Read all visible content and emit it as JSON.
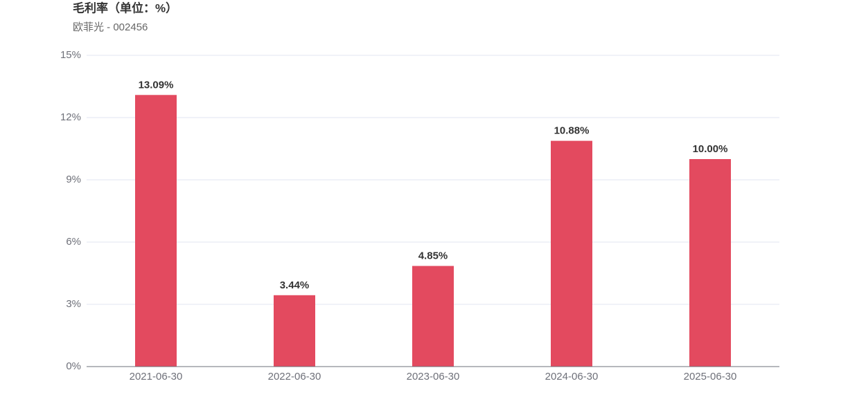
{
  "chart_data": {
    "type": "bar",
    "title": "毛利率（单位：%）",
    "subtitle": "欧菲光 - 002456",
    "categories": [
      "2021-06-30",
      "2022-06-30",
      "2023-06-30",
      "2024-06-30",
      "2025-06-30"
    ],
    "values": [
      13.09,
      3.44,
      4.85,
      10.88,
      10.0
    ],
    "value_labels": [
      "13.09%",
      "3.44%",
      "4.85%",
      "10.88%",
      "10.00%"
    ],
    "color": "#e34a5f",
    "ylim": [
      0,
      15
    ],
    "yticks": [
      {
        "value": 0,
        "label": "0%"
      },
      {
        "value": 3,
        "label": "3%"
      },
      {
        "value": 6,
        "label": "6%"
      },
      {
        "value": 9,
        "label": "9%"
      },
      {
        "value": 12,
        "label": "12%"
      },
      {
        "value": 15,
        "label": "15%"
      }
    ],
    "grid": true
  }
}
